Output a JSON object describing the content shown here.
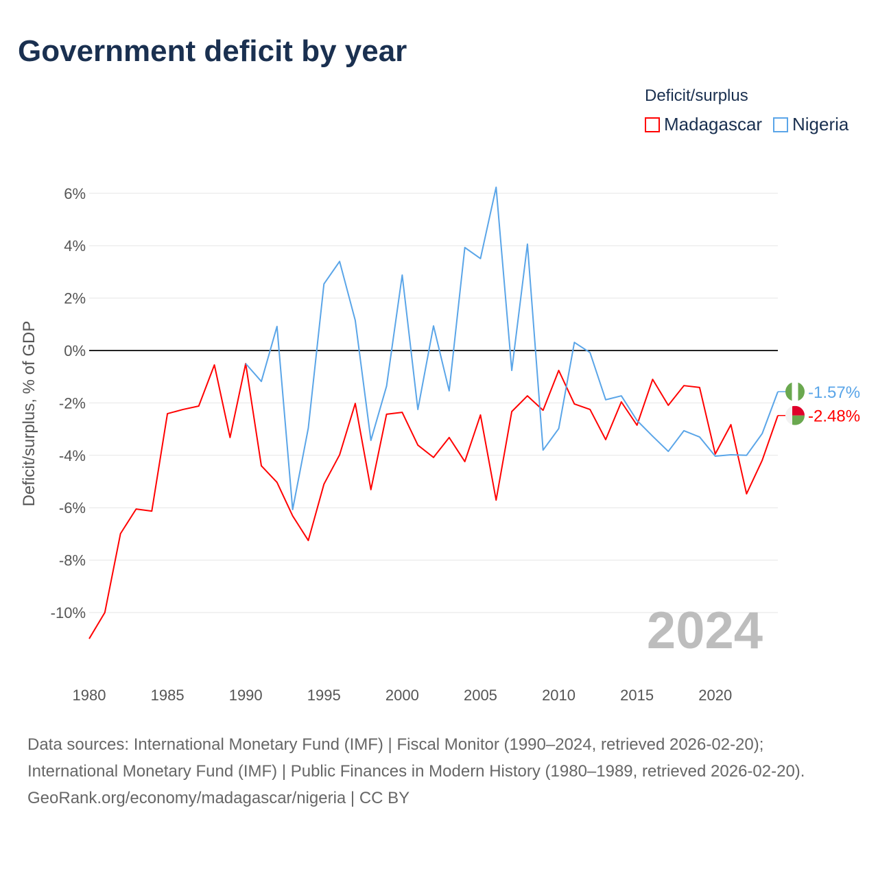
{
  "title": "Government deficit by year",
  "legend": {
    "title": "Deficit/surplus",
    "items": [
      "Madagascar",
      "Nigeria"
    ]
  },
  "colors": {
    "Madagascar": "#ff0000",
    "Nigeria": "#5aa5e8",
    "zero_line": "#222222",
    "grid": "#e6e6e6"
  },
  "year_watermark": "2024",
  "end_labels": {
    "Madagascar": "-2.48%",
    "Nigeria": "-1.57%"
  },
  "flag_icons": {
    "Madagascar": "madagascar-flag-icon",
    "Nigeria": "nigeria-flag-icon"
  },
  "source_lines": [
    "Data sources: International Monetary Fund (IMF) | Fiscal Monitor (1990–2024, retrieved 2026-02-20); International Monetary Fund (IMF) | Public Finances in Modern History (1980–1989, retrieved 2026-02-20).",
    "GeoRank.org/economy/madagascar/nigeria | CC BY"
  ],
  "chart_data": {
    "type": "line",
    "title": "Government deficit by year",
    "xlabel": "",
    "ylabel": "Deficit/surplus, % of GDP",
    "xlim": [
      1980,
      2024
    ],
    "ylim": [
      -11,
      6.5
    ],
    "x_ticks": [
      1980,
      1985,
      1990,
      1995,
      2000,
      2005,
      2010,
      2015,
      2020
    ],
    "x_tick_labels": [
      "1980",
      "1985",
      "1990",
      "1995",
      "2000",
      "2005",
      "2010",
      "2015",
      "2020"
    ],
    "y_ticks": [
      6,
      4,
      2,
      0,
      -2,
      -4,
      -6,
      -8,
      -10
    ],
    "y_tick_labels": [
      "6%",
      "4%",
      "2%",
      "0%",
      "-2%",
      "-4%",
      "-6%",
      "-8%",
      "-10%"
    ],
    "grid": true,
    "legend_position": "top-right",
    "series": [
      {
        "name": "Madagascar",
        "start_year": 1980,
        "values": [
          -11.0,
          -10.0,
          -6.99,
          -6.05,
          -6.13,
          -2.41,
          -2.25,
          -2.12,
          -0.55,
          -3.32,
          -0.5,
          -4.4,
          -5.03,
          -6.31,
          -7.25,
          -5.1,
          -3.98,
          -2.02,
          -5.31,
          -2.43,
          -2.36,
          -3.61,
          -4.08,
          -3.32,
          -4.24,
          -2.46,
          -5.71,
          -2.33,
          -1.73,
          -2.28,
          -0.76,
          -2.04,
          -2.25,
          -3.4,
          -1.96,
          -2.85,
          -1.1,
          -2.09,
          -1.34,
          -1.41,
          -3.95,
          -2.83,
          -5.47,
          -4.19,
          -2.48
        ]
      },
      {
        "name": "Nigeria",
        "start_year": 1990,
        "values": [
          -0.5,
          -1.18,
          0.92,
          -6.07,
          -2.96,
          2.54,
          3.4,
          1.15,
          -3.43,
          -1.36,
          2.88,
          -2.25,
          0.94,
          -1.54,
          3.93,
          3.51,
          6.23,
          -0.76,
          4.06,
          -3.8,
          -2.98,
          0.31,
          -0.08,
          -1.88,
          -1.73,
          -2.67,
          -3.27,
          -3.85,
          -3.06,
          -3.3,
          -4.03,
          -3.98,
          -4.0,
          -3.17,
          -1.57
        ]
      }
    ]
  }
}
